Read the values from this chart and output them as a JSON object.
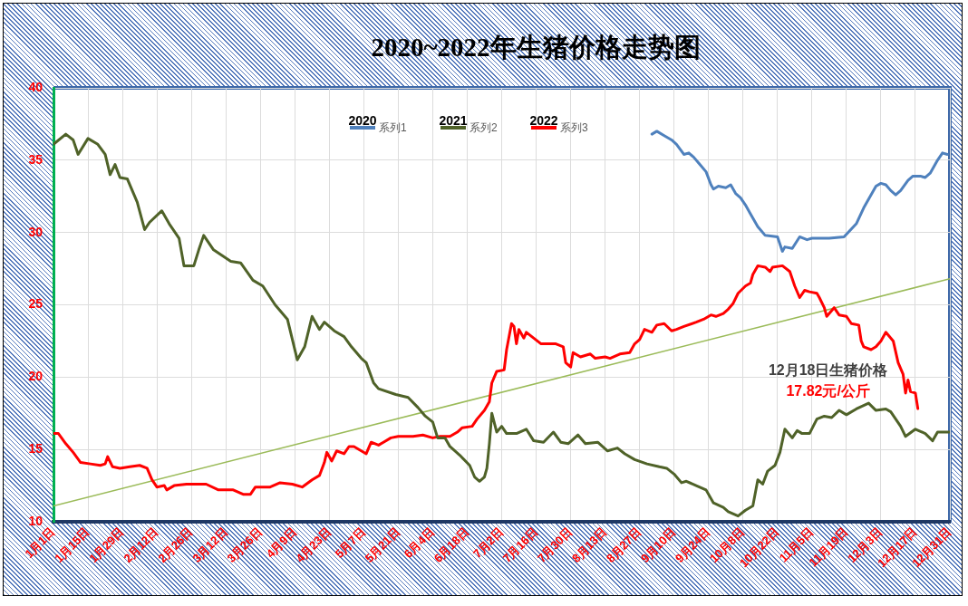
{
  "chart_data": {
    "type": "line",
    "title": "2020~2022年生猪价格走势图",
    "xlim": [
      "--01-01",
      "--12-31"
    ],
    "xticks": [
      {
        "value": "--01-01",
        "label": "1月1日"
      },
      {
        "value": "--01-15",
        "label": "1月15日"
      },
      {
        "value": "--01-29",
        "label": "1月29日"
      },
      {
        "value": "--02-12",
        "label": "2月12日"
      },
      {
        "value": "--02-26",
        "label": "2月26日"
      },
      {
        "value": "--03-12",
        "label": "3月12日"
      },
      {
        "value": "--03-26",
        "label": "3月26日"
      },
      {
        "value": "--04-09",
        "label": "4月9日"
      },
      {
        "value": "--04-23",
        "label": "4月23日"
      },
      {
        "value": "--05-07",
        "label": "5月7日"
      },
      {
        "value": "--05-21",
        "label": "5月21日"
      },
      {
        "value": "--06-04",
        "label": "6月4日"
      },
      {
        "value": "--06-18",
        "label": "6月18日"
      },
      {
        "value": "--07-02",
        "label": "7月2日"
      },
      {
        "value": "--07-16",
        "label": "7月16日"
      },
      {
        "value": "--07-30",
        "label": "7月30日"
      },
      {
        "value": "--08-13",
        "label": "8月13日"
      },
      {
        "value": "--08-27",
        "label": "8月27日"
      },
      {
        "value": "--09-10",
        "label": "9月10日"
      },
      {
        "value": "--09-24",
        "label": "9月24日"
      },
      {
        "value": "--10-08",
        "label": "10月8日"
      },
      {
        "value": "--10-22",
        "label": "10月22日"
      },
      {
        "value": "--11-05",
        "label": "11月5日"
      },
      {
        "value": "--11-19",
        "label": "11月19日"
      },
      {
        "value": "--12-03",
        "label": "12月3日"
      },
      {
        "value": "--12-17",
        "label": "12月17日"
      },
      {
        "value": "--12-31",
        "label": "12月31日"
      }
    ],
    "ylim": [
      10,
      40
    ],
    "yticks": [
      10,
      15,
      20,
      25,
      30,
      35,
      40
    ],
    "grid": true,
    "legend": "top",
    "series": [
      {
        "name": "系列1",
        "color": "#4f81bd",
        "x": [
          "--09-01",
          "--09-03",
          "--09-06",
          "--09-09",
          "--09-11",
          "--09-14",
          "--09-16",
          "--09-18",
          "--09-20",
          "--09-23",
          "--09-25",
          "--09-26",
          "--09-28",
          "--10-01",
          "--10-03",
          "--10-05",
          "--10-07",
          "--10-09",
          "--10-11",
          "--10-14",
          "--10-17",
          "--10-22",
          "--10-24",
          "--10-25",
          "--10-28",
          "--10-31",
          "--11-03",
          "--11-05",
          "--11-12",
          "--11-18",
          "--11-23",
          "--11-26",
          "--12-01",
          "--12-03",
          "--12-05",
          "--12-07",
          "--12-09",
          "--12-11",
          "--12-14",
          "--12-16",
          "--12-19",
          "--12-21",
          "--12-23",
          "--12-26",
          "--12-28",
          "--12-30"
        ],
        "values": [
          36.8,
          37.0,
          36.7,
          36.4,
          36.1,
          35.4,
          35.5,
          35.2,
          34.8,
          34.2,
          33.3,
          33.0,
          33.2,
          33.1,
          33.3,
          32.7,
          32.4,
          31.9,
          31.3,
          30.4,
          29.8,
          29.7,
          28.7,
          29.0,
          28.9,
          29.7,
          29.5,
          29.6,
          29.6,
          29.7,
          30.6,
          31.7,
          33.2,
          33.4,
          33.3,
          32.9,
          32.6,
          32.9,
          33.6,
          33.9,
          33.9,
          33.8,
          34.1,
          35.0,
          35.5,
          35.4
        ]
      },
      {
        "name": "系列2",
        "color": "#4f6228",
        "x": [
          "--01-01",
          "--01-06",
          "--01-09",
          "--01-11",
          "--01-15",
          "--01-19",
          "--01-22",
          "--01-24",
          "--01-26",
          "--01-28",
          "--01-31",
          "--02-04",
          "--02-07",
          "--02-09",
          "--02-14",
          "--02-17",
          "--02-21",
          "--02-23",
          "--02-27",
          "--03-01",
          "--03-03",
          "--03-07",
          "--03-14",
          "--03-18",
          "--03-23",
          "--03-27",
          "--04-01",
          "--04-06",
          "--04-10",
          "--04-13",
          "--04-16",
          "--04-19",
          "--04-21",
          "--04-25",
          "--04-29",
          "--05-02",
          "--05-06",
          "--05-08",
          "--05-11",
          "--05-13",
          "--05-20",
          "--05-25",
          "--05-29",
          "--06-01",
          "--06-04",
          "--06-06",
          "--06-09",
          "--06-11",
          "--06-15",
          "--06-19",
          "--06-21",
          "--06-23",
          "--06-25",
          "--06-26",
          "--06-27",
          "--06-28",
          "--06-30",
          "--07-02",
          "--07-04",
          "--07-08",
          "--07-12",
          "--07-15",
          "--07-19",
          "--07-23",
          "--07-26",
          "--07-29",
          "--08-02",
          "--08-05",
          "--08-10",
          "--08-14",
          "--08-18",
          "--08-21",
          "--08-25",
          "--08-30",
          "--09-04",
          "--09-07",
          "--09-10",
          "--09-13",
          "--09-15",
          "--09-19",
          "--09-23",
          "--09-26",
          "--09-30",
          "--10-02",
          "--10-06",
          "--10-09",
          "--10-12",
          "--10-14",
          "--10-16",
          "--10-18",
          "--10-21",
          "--10-23",
          "--10-25",
          "--10-28",
          "--10-30",
          "--11-01",
          "--11-04",
          "--11-07",
          "--11-10",
          "--11-13",
          "--11-16",
          "--11-19",
          "--11-23",
          "--11-28",
          "--12-01",
          "--12-05",
          "--12-07",
          "--12-11",
          "--12-13",
          "--12-17",
          "--12-21",
          "--12-24",
          "--12-26",
          "--12-31"
        ],
        "values": [
          36.1,
          36.8,
          36.4,
          35.4,
          36.5,
          36.1,
          35.4,
          34.0,
          34.7,
          33.8,
          33.7,
          32.1,
          30.2,
          30.7,
          31.5,
          30.6,
          29.6,
          27.7,
          27.7,
          28.8,
          29.8,
          28.8,
          28.0,
          27.9,
          26.7,
          26.3,
          25.0,
          24.0,
          21.2,
          22.1,
          24.2,
          23.3,
          23.8,
          23.2,
          22.8,
          22.1,
          21.3,
          21.0,
          19.6,
          19.2,
          18.8,
          18.6,
          17.9,
          17.3,
          16.9,
          15.8,
          15.8,
          15.2,
          14.6,
          13.9,
          13.1,
          12.8,
          13.1,
          13.7,
          15.4,
          17.5,
          16.2,
          16.6,
          16.1,
          16.1,
          16.4,
          15.6,
          15.5,
          16.2,
          15.5,
          15.4,
          16.0,
          15.4,
          15.5,
          14.9,
          15.1,
          14.7,
          14.3,
          14.0,
          13.8,
          13.7,
          13.3,
          12.7,
          12.8,
          12.5,
          12.2,
          11.3,
          11.0,
          10.7,
          10.4,
          10.8,
          11.1,
          12.9,
          12.6,
          13.5,
          13.9,
          14.8,
          16.4,
          15.8,
          16.3,
          16.1,
          16.1,
          17.1,
          17.3,
          17.2,
          17.7,
          17.4,
          17.8,
          18.2,
          17.7,
          17.8,
          17.6,
          16.6,
          15.9,
          16.4,
          16.1,
          15.6,
          16.2,
          16.2
        ]
      },
      {
        "name": "系列3",
        "color": "#ff0000",
        "x": [
          "--01-01",
          "--01-03",
          "--01-06",
          "--01-09",
          "--01-12",
          "--01-16",
          "--01-20",
          "--01-22",
          "--01-23",
          "--01-25",
          "--01-28",
          "--02-01",
          "--02-05",
          "--02-08",
          "--02-10",
          "--02-12",
          "--02-15",
          "--02-16",
          "--02-19",
          "--02-24",
          "--03-04",
          "--03-09",
          "--03-15",
          "--03-19",
          "--03-22",
          "--03-24",
          "--03-30",
          "--04-03",
          "--04-08",
          "--04-12",
          "--04-16",
          "--04-19",
          "--04-21",
          "--04-22",
          "--04-24",
          "--04-26",
          "--04-29",
          "--05-01",
          "--05-03",
          "--05-06",
          "--05-08",
          "--05-10",
          "--05-13",
          "--05-15",
          "--05-18",
          "--05-21",
          "--05-27",
          "--05-31",
          "--06-04",
          "--06-07",
          "--06-11",
          "--06-14",
          "--06-16",
          "--06-20",
          "--06-22",
          "--06-25",
          "--06-27",
          "--06-28",
          "--06-30",
          "--07-03",
          "--07-04",
          "--07-06",
          "--07-07",
          "--07-08",
          "--07-09",
          "--07-11",
          "--07-12",
          "--07-18",
          "--07-24",
          "--07-27",
          "--07-28",
          "--07-30",
          "--07-31",
          "--08-03",
          "--08-07",
          "--08-09",
          "--08-13",
          "--08-15",
          "--08-19",
          "--08-23",
          "--08-25",
          "--08-27",
          "--08-29",
          "--09-01",
          "--09-03",
          "--09-06",
          "--09-09",
          "--09-11",
          "--09-14",
          "--09-19",
          "--09-22",
          "--09-25",
          "--09-27",
          "--09-30",
          "--10-02",
          "--10-04",
          "--10-06",
          "--10-09",
          "--10-11",
          "--10-12",
          "--10-14",
          "--10-17",
          "--10-19",
          "--10-20",
          "--10-24",
          "--10-27",
          "--10-29",
          "--10-31",
          "--11-02",
          "--11-04",
          "--11-07",
          "--11-08",
          "--11-10",
          "--11-11",
          "--11-14",
          "--11-16",
          "--11-19",
          "--11-21",
          "--11-24",
          "--11-25",
          "--11-26",
          "--11-29",
          "--12-01",
          "--12-03",
          "--12-05",
          "--12-07",
          "--12-08",
          "--12-10",
          "--12-12",
          "--12-13",
          "--12-14",
          "--12-15",
          "--12-17",
          "--12-18"
        ],
        "values": [
          16.1,
          16.1,
          15.4,
          14.8,
          14.1,
          14.0,
          13.9,
          14.0,
          14.5,
          13.8,
          13.7,
          13.8,
          13.9,
          13.7,
          12.9,
          12.4,
          12.5,
          12.2,
          12.5,
          12.6,
          12.6,
          12.2,
          12.2,
          11.9,
          11.9,
          12.4,
          12.4,
          12.7,
          12.6,
          12.4,
          12.9,
          13.2,
          14.1,
          14.8,
          14.2,
          14.9,
          14.7,
          15.2,
          15.2,
          14.9,
          14.7,
          15.5,
          15.3,
          15.5,
          15.8,
          15.9,
          15.9,
          16.0,
          15.8,
          15.9,
          15.9,
          16.2,
          16.5,
          16.6,
          17.1,
          17.7,
          18.3,
          19.6,
          20.4,
          20.5,
          21.9,
          23.7,
          23.5,
          22.3,
          23.3,
          22.7,
          23.1,
          22.3,
          22.3,
          22.1,
          21.0,
          20.7,
          21.7,
          21.4,
          21.6,
          21.3,
          21.4,
          21.3,
          21.6,
          21.7,
          22.3,
          22.6,
          23.3,
          23.1,
          23.6,
          23.7,
          23.2,
          23.3,
          23.5,
          23.8,
          24.0,
          24.3,
          24.2,
          24.4,
          24.7,
          25.1,
          25.8,
          26.3,
          26.5,
          27.1,
          27.7,
          27.6,
          27.3,
          27.6,
          27.7,
          27.3,
          26.3,
          25.5,
          26.0,
          25.9,
          25.8,
          25.5,
          24.8,
          24.2,
          24.8,
          24.3,
          24.2,
          23.7,
          23.6,
          22.5,
          22.1,
          21.9,
          22.1,
          22.5,
          23.1,
          22.7,
          22.5,
          21.0,
          20.2,
          18.9,
          19.8,
          19.0,
          18.9,
          17.82
        ]
      },
      {
        "type": "line",
        "color": "#9bbb59",
        "x": [
          "--01-01",
          "--12-31"
        ],
        "values": [
          11.1,
          26.8
        ]
      }
    ],
    "annotations": [
      "2020",
      "2021",
      "2022",
      {
        "text": "12月18日生猪价格",
        "x": "--12-18",
        "y": 17.82
      },
      "17.82元/公斤"
    ]
  }
}
